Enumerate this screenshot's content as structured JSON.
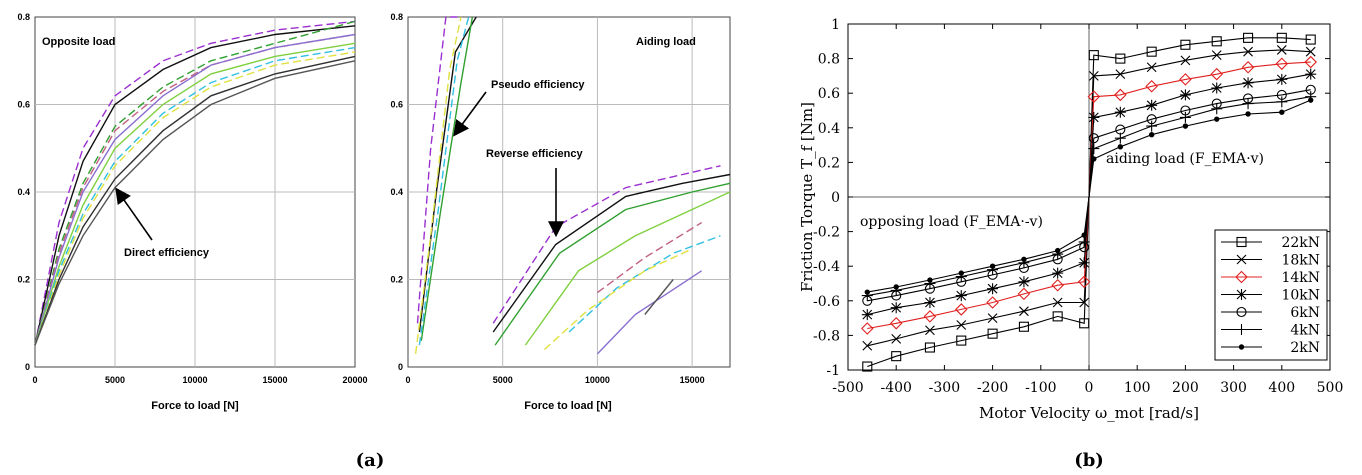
{
  "figure": {
    "caption_a": "(a)",
    "caption_b": "(b)"
  },
  "chart_data": [
    {
      "type": "line",
      "panel": "a-left",
      "xlabel": "Force to load [N]",
      "ylabel": "",
      "xlim": [
        0,
        20000
      ],
      "ylim": [
        0,
        0.8
      ],
      "xticks": [
        "0",
        "5000",
        "10000",
        "15000",
        "20000"
      ],
      "yticks": [
        "0",
        "0.2",
        "0.4",
        "0.6",
        "0.8"
      ],
      "grid": true,
      "annotations": [
        {
          "text": "Opposite load",
          "kind": "label"
        },
        {
          "text": "Direct efficiency",
          "kind": "arrow",
          "target": [
            5000,
            0.42
          ]
        }
      ],
      "series": [
        {
          "color": "#9b30d0",
          "dash": "8,4",
          "x": [
            0,
            1500,
            3000,
            5000,
            8000,
            11000,
            15000,
            20000
          ],
          "y": [
            0.05,
            0.33,
            0.5,
            0.62,
            0.7,
            0.74,
            0.77,
            0.79
          ]
        },
        {
          "color": "#111111",
          "dash": "",
          "x": [
            0,
            1500,
            3000,
            5000,
            8000,
            11000,
            15000,
            20000
          ],
          "y": [
            0.05,
            0.3,
            0.47,
            0.6,
            0.68,
            0.73,
            0.76,
            0.78
          ]
        },
        {
          "color": "#30a030",
          "dash": "8,4",
          "x": [
            0,
            1500,
            3000,
            5000,
            8000,
            11000,
            15000,
            20000
          ],
          "y": [
            0.05,
            0.27,
            0.42,
            0.55,
            0.64,
            0.7,
            0.74,
            0.79
          ]
        },
        {
          "color": "#c06080",
          "dash": "8,4",
          "x": [
            0,
            1500,
            3000,
            5000,
            8000,
            11000,
            15000,
            20000
          ],
          "y": [
            0.05,
            0.26,
            0.41,
            0.54,
            0.63,
            0.69,
            0.73,
            0.76
          ]
        },
        {
          "color": "#8a6fd0",
          "dash": "",
          "x": [
            0,
            1500,
            3000,
            5000,
            8000,
            11000,
            15000,
            20000
          ],
          "y": [
            0.05,
            0.25,
            0.4,
            0.52,
            0.62,
            0.69,
            0.73,
            0.76
          ]
        },
        {
          "color": "#80d040",
          "dash": "",
          "x": [
            0,
            1500,
            3000,
            5000,
            8000,
            11000,
            15000,
            20000
          ],
          "y": [
            0.05,
            0.23,
            0.37,
            0.5,
            0.6,
            0.67,
            0.71,
            0.74
          ]
        },
        {
          "color": "#30c0e0",
          "dash": "8,4",
          "x": [
            0,
            1500,
            3000,
            5000,
            8000,
            11000,
            15000,
            20000
          ],
          "y": [
            0.05,
            0.22,
            0.35,
            0.47,
            0.58,
            0.65,
            0.7,
            0.73
          ]
        },
        {
          "color": "#e0e040",
          "dash": "8,4",
          "x": [
            0,
            1500,
            3000,
            5000,
            8000,
            11000,
            15000,
            20000
          ],
          "y": [
            0.05,
            0.21,
            0.34,
            0.46,
            0.57,
            0.64,
            0.69,
            0.72
          ]
        },
        {
          "color": "#303030",
          "dash": "",
          "x": [
            0,
            1500,
            3000,
            5000,
            8000,
            11000,
            15000,
            20000
          ],
          "y": [
            0.05,
            0.2,
            0.32,
            0.43,
            0.54,
            0.62,
            0.67,
            0.71
          ]
        },
        {
          "color": "#555555",
          "dash": "",
          "x": [
            0,
            1500,
            3000,
            5000,
            8000,
            11000,
            15000,
            20000
          ],
          "y": [
            0.05,
            0.19,
            0.3,
            0.41,
            0.52,
            0.6,
            0.66,
            0.7
          ]
        }
      ]
    },
    {
      "type": "line",
      "panel": "a-right",
      "xlabel": "Force to load [N]",
      "ylabel": "",
      "xlim": [
        0,
        17000
      ],
      "ylim": [
        0,
        0.8
      ],
      "xticks": [
        "0",
        "5000",
        "10000",
        "15000"
      ],
      "yticks": [
        "0",
        "0.2",
        "0.4",
        "0.6",
        "0.8"
      ],
      "grid": true,
      "annotations": [
        {
          "text": "Aiding load",
          "kind": "label"
        },
        {
          "text": "Pseudo efficiency",
          "kind": "arrow",
          "target": [
            2800,
            0.53
          ]
        },
        {
          "text": "Reverse efficiency",
          "kind": "arrow",
          "target": [
            7800,
            0.29
          ]
        }
      ],
      "series": [
        {
          "color": "#9b30d0",
          "dash": "8,4",
          "x": [
            500,
            1200,
            2000,
            2600
          ],
          "y": [
            0.1,
            0.5,
            0.8,
            0.8
          ]
        },
        {
          "color": "#111111",
          "dash": "",
          "x": [
            600,
            1500,
            2500,
            3600
          ],
          "y": [
            0.08,
            0.4,
            0.72,
            0.8
          ]
        },
        {
          "color": "#30a030",
          "dash": "",
          "x": [
            700,
            1700,
            2800,
            3400
          ],
          "y": [
            0.06,
            0.35,
            0.65,
            0.8
          ]
        },
        {
          "color": "#30c0e0",
          "dash": "8,4",
          "x": [
            600,
            1600,
            2600,
            3200
          ],
          "y": [
            0.05,
            0.36,
            0.7,
            0.8
          ]
        },
        {
          "color": "#e0e040",
          "dash": "8,4",
          "x": [
            400,
            1200,
            2200,
            2800
          ],
          "y": [
            0.03,
            0.3,
            0.68,
            0.8
          ]
        },
        {
          "color": "#9b30d0",
          "dash": "8,4",
          "x": [
            4500,
            7800,
            11500,
            14500,
            16500
          ],
          "y": [
            0.1,
            0.32,
            0.41,
            0.44,
            0.46
          ]
        },
        {
          "color": "#111111",
          "dash": "",
          "x": [
            4500,
            7800,
            11500,
            14500,
            17000
          ],
          "y": [
            0.08,
            0.28,
            0.39,
            0.42,
            0.44
          ]
        },
        {
          "color": "#30a030",
          "dash": "",
          "x": [
            4600,
            8000,
            11500,
            15000,
            17000
          ],
          "y": [
            0.05,
            0.26,
            0.36,
            0.4,
            0.42
          ]
        },
        {
          "color": "#80d040",
          "dash": "",
          "x": [
            6200,
            9000,
            12000,
            15000,
            17000
          ],
          "y": [
            0.05,
            0.22,
            0.3,
            0.36,
            0.4
          ]
        },
        {
          "color": "#30c0e0",
          "dash": "8,4",
          "x": [
            8500,
            11000,
            14000,
            16500
          ],
          "y": [
            0.08,
            0.18,
            0.26,
            0.3
          ]
        },
        {
          "color": "#e0e040",
          "dash": "8,4",
          "x": [
            7200,
            9500,
            12500,
            15000
          ],
          "y": [
            0.04,
            0.13,
            0.22,
            0.27
          ]
        },
        {
          "color": "#c06080",
          "dash": "8,4",
          "x": [
            10000,
            12500,
            15500
          ],
          "y": [
            0.17,
            0.25,
            0.33
          ]
        },
        {
          "color": "#8a6fd0",
          "dash": "",
          "x": [
            10000,
            12000,
            15500
          ],
          "y": [
            0.03,
            0.12,
            0.22
          ]
        },
        {
          "color": "#555555",
          "dash": "",
          "x": [
            12500,
            14000
          ],
          "y": [
            0.12,
            0.2
          ]
        }
      ]
    },
    {
      "type": "line",
      "panel": "b",
      "xlabel": "Motor Velocity ω_mot [rad/s]",
      "ylabel": "Friction Torque T_f [Nm]",
      "xlim": [
        -500,
        500
      ],
      "ylim": [
        -1,
        1
      ],
      "xticks": [
        "-500",
        "-400",
        "-300",
        "-200",
        "-100",
        "0",
        "100",
        "200",
        "300",
        "400",
        "500"
      ],
      "yticks": [
        "-1",
        "-0.8",
        "-0.6",
        "-0.4",
        "-0.2",
        "0",
        "0.2",
        "0.4",
        "0.6",
        "0.8",
        "1"
      ],
      "grid": false,
      "legend": "bottom-right",
      "annotations": [
        {
          "text": "aiding load (F_EMA·v)",
          "kind": "label"
        },
        {
          "text": "opposing load (F_EMA·-v)",
          "kind": "label"
        }
      ],
      "series": [
        {
          "name": "22kN",
          "marker": "square",
          "color": "#000000",
          "x": [
            -460,
            -400,
            -330,
            -265,
            -200,
            -135,
            -65,
            -10,
            0,
            10,
            65,
            130,
            200,
            265,
            330,
            400,
            460
          ],
          "y": [
            -0.98,
            -0.92,
            -0.87,
            -0.83,
            -0.79,
            -0.75,
            -0.69,
            -0.73,
            0,
            0.82,
            0.8,
            0.84,
            0.88,
            0.9,
            0.92,
            0.92,
            0.91
          ]
        },
        {
          "name": "18kN",
          "marker": "x",
          "color": "#000000",
          "x": [
            -460,
            -400,
            -330,
            -265,
            -200,
            -135,
            -65,
            -10,
            0,
            10,
            65,
            130,
            200,
            265,
            330,
            400,
            460
          ],
          "y": [
            -0.86,
            -0.82,
            -0.77,
            -0.74,
            -0.7,
            -0.66,
            -0.61,
            -0.61,
            0,
            0.7,
            0.71,
            0.75,
            0.79,
            0.82,
            0.84,
            0.85,
            0.84
          ]
        },
        {
          "name": "14kN",
          "marker": "diamond",
          "color": "#e02020",
          "x": [
            -460,
            -400,
            -330,
            -265,
            -200,
            -135,
            -65,
            -10,
            0,
            10,
            65,
            130,
            200,
            265,
            330,
            400,
            460
          ],
          "y": [
            -0.76,
            -0.73,
            -0.69,
            -0.65,
            -0.61,
            -0.56,
            -0.51,
            -0.49,
            0,
            0.58,
            0.59,
            0.64,
            0.68,
            0.71,
            0.75,
            0.77,
            0.78
          ]
        },
        {
          "name": "10kN",
          "marker": "asterisk",
          "color": "#000000",
          "x": [
            -460,
            -400,
            -330,
            -265,
            -200,
            -135,
            -65,
            -10,
            0,
            10,
            65,
            130,
            200,
            265,
            330,
            400,
            460
          ],
          "y": [
            -0.68,
            -0.64,
            -0.61,
            -0.57,
            -0.53,
            -0.49,
            -0.44,
            -0.38,
            0,
            0.46,
            0.49,
            0.53,
            0.59,
            0.63,
            0.66,
            0.68,
            0.71
          ]
        },
        {
          "name": "6kN",
          "marker": "circle",
          "color": "#000000",
          "x": [
            -460,
            -400,
            -330,
            -265,
            -200,
            -135,
            -65,
            -10,
            0,
            10,
            65,
            130,
            200,
            265,
            330,
            400,
            460
          ],
          "y": [
            -0.6,
            -0.57,
            -0.53,
            -0.49,
            -0.45,
            -0.41,
            -0.36,
            -0.29,
            0,
            0.34,
            0.39,
            0.45,
            0.5,
            0.54,
            0.57,
            0.59,
            0.62
          ]
        },
        {
          "name": "4kN",
          "marker": "plus",
          "color": "#000000",
          "x": [
            -460,
            -400,
            -330,
            -265,
            -200,
            -135,
            -65,
            -10,
            0,
            10,
            65,
            130,
            200,
            265,
            330,
            400,
            460
          ],
          "y": [
            -0.57,
            -0.54,
            -0.5,
            -0.46,
            -0.42,
            -0.38,
            -0.33,
            -0.26,
            0,
            0.28,
            0.34,
            0.41,
            0.46,
            0.51,
            0.54,
            0.55,
            0.58
          ]
        },
        {
          "name": "2kN",
          "marker": "dot",
          "color": "#000000",
          "x": [
            -460,
            -400,
            -330,
            -265,
            -200,
            -135,
            -65,
            -10,
            0,
            10,
            65,
            130,
            200,
            265,
            330,
            400,
            460
          ],
          "y": [
            -0.55,
            -0.52,
            -0.48,
            -0.44,
            -0.4,
            -0.36,
            -0.31,
            -0.22,
            0,
            0.22,
            0.29,
            0.36,
            0.41,
            0.45,
            0.48,
            0.49,
            0.56
          ]
        }
      ]
    }
  ]
}
